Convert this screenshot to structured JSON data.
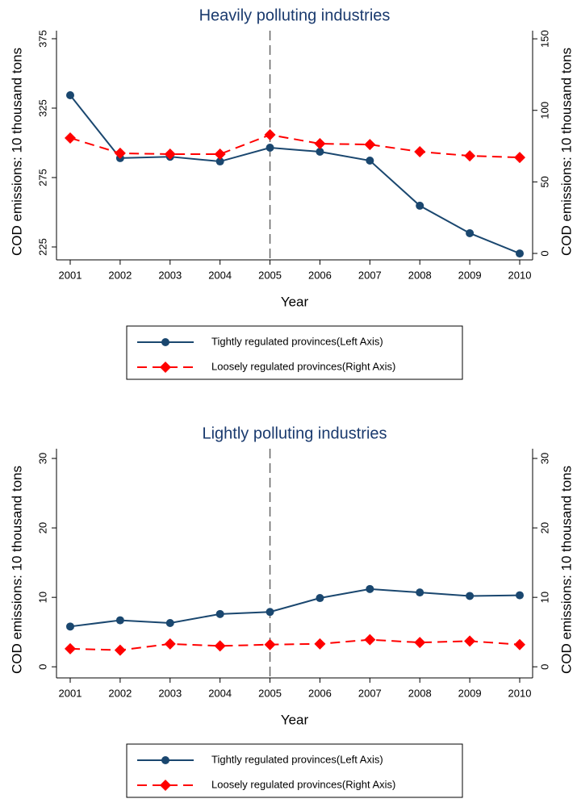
{
  "chart_data": [
    {
      "type": "line",
      "title": "Heavily polluting industries",
      "x_label": "Year",
      "y_label": "COD emissions: 10 thousand tons",
      "y2_label": "COD emissions: 10 thousand tons",
      "categories": [
        "2001",
        "2002",
        "2003",
        "2004",
        "2005",
        "2006",
        "2007",
        "2008",
        "2009",
        "2010"
      ],
      "series": [
        {
          "name": "Tightly regulated provinces(Left Axis)",
          "color": "#1a476f",
          "marker": "circle",
          "dash": "solid",
          "values": [
            334.3,
            289,
            290,
            286.6,
            296.5,
            293.6,
            287.2,
            254.7,
            234.9,
            220.3
          ]
        },
        {
          "name": "Loosely regulated provinces(Right Axis)",
          "color": "#ff0000",
          "marker": "diamond",
          "dash": "dashed",
          "axis": "y2",
          "values": [
            80.7,
            70,
            69.4,
            69.4,
            82.9,
            76.7,
            76.1,
            71.1,
            68.2,
            67.1
          ]
        }
      ],
      "ylim": [
        215.7,
        380.8
      ],
      "yticks": [
        225,
        275,
        325,
        375
      ],
      "y2lim": [
        -4.5,
        155.7
      ],
      "y2ticks": [
        0,
        50,
        100,
        150
      ],
      "vline": "2005",
      "legend": "bottom"
    },
    {
      "type": "line",
      "title": "Lightly polluting industries",
      "x_label": "Year",
      "y_label": "COD emissions: 10 thousand tons",
      "y2_label": "COD emissions: 10 thousand tons",
      "categories": [
        "2001",
        "2002",
        "2003",
        "2004",
        "2005",
        "2006",
        "2007",
        "2008",
        "2009",
        "2010"
      ],
      "series": [
        {
          "name": "Tightly regulated provinces(Left Axis)",
          "color": "#1a476f",
          "marker": "circle",
          "dash": "solid",
          "values": [
            5.8,
            6.7,
            6.3,
            7.6,
            7.9,
            9.9,
            11.2,
            10.7,
            10.2,
            10.3
          ]
        },
        {
          "name": "Loosely regulated provinces(Right Axis)",
          "color": "#ff0000",
          "marker": "diamond",
          "dash": "dashed",
          "axis": "y2",
          "values": [
            2.6,
            2.4,
            3.3,
            3.0,
            3.2,
            3.3,
            3.9,
            3.5,
            3.7,
            3.2
          ]
        }
      ],
      "ylim": [
        -1.6,
        31.4
      ],
      "yticks": [
        0,
        10,
        20,
        30
      ],
      "y2lim": [
        -1.6,
        31.4
      ],
      "y2ticks": [
        0,
        10,
        20,
        30
      ],
      "vline": "2005",
      "legend": "bottom"
    }
  ]
}
